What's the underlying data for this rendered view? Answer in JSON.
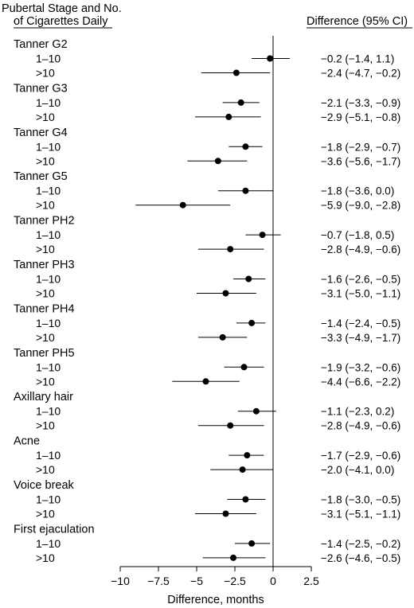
{
  "chart_data": {
    "type": "forest",
    "header_left_line1": "Pubertal Stage and No.",
    "header_left_line2": "of Cigarettes Daily",
    "header_right": "Difference (95% CI)",
    "xlabel": "Difference, months",
    "xlim": [
      -10,
      2.5
    ],
    "xticks": [
      -10,
      -7.5,
      -5,
      -2.5,
      0,
      2.5
    ],
    "xtick_labels": [
      "−10",
      "−7.5",
      "−5",
      "−2.5",
      "0",
      "2.5"
    ],
    "reference_line": 0,
    "groups": [
      {
        "name": "Tanner G2",
        "rows": [
          {
            "label": "1–10",
            "est": -0.2,
            "lo": -1.4,
            "hi": 1.1,
            "text": "−0.2 (−1.4, 1.1)"
          },
          {
            "label": ">10",
            "est": -2.4,
            "lo": -4.7,
            "hi": -0.2,
            "text": "−2.4 (−4.7, −0.2)"
          }
        ]
      },
      {
        "name": "Tanner G3",
        "rows": [
          {
            "label": "1–10",
            "est": -2.1,
            "lo": -3.3,
            "hi": -0.9,
            "text": "−2.1 (−3.3, −0.9)"
          },
          {
            "label": ">10",
            "est": -2.9,
            "lo": -5.1,
            "hi": -0.8,
            "text": "−2.9 (−5.1, −0.8)"
          }
        ]
      },
      {
        "name": "Tanner G4",
        "rows": [
          {
            "label": "1–10",
            "est": -1.8,
            "lo": -2.9,
            "hi": -0.7,
            "text": "−1.8 (−2.9, −0.7)"
          },
          {
            "label": ">10",
            "est": -3.6,
            "lo": -5.6,
            "hi": -1.7,
            "text": "−3.6 (−5.6, −1.7)"
          }
        ]
      },
      {
        "name": "Tanner G5",
        "rows": [
          {
            "label": "1–10",
            "est": -1.8,
            "lo": -3.6,
            "hi": 0.0,
            "text": "−1.8 (−3.6, 0.0)"
          },
          {
            "label": ">10",
            "est": -5.9,
            "lo": -9.0,
            "hi": -2.8,
            "text": "−5.9 (−9.0, −2.8)"
          }
        ]
      },
      {
        "name": "Tanner PH2",
        "rows": [
          {
            "label": "1–10",
            "est": -0.7,
            "lo": -1.8,
            "hi": 0.5,
            "text": "−0.7 (−1.8, 0.5)"
          },
          {
            "label": ">10",
            "est": -2.8,
            "lo": -4.9,
            "hi": -0.6,
            "text": "−2.8 (−4.9, −0.6)"
          }
        ]
      },
      {
        "name": "Tanner PH3",
        "rows": [
          {
            "label": "1–10",
            "est": -1.6,
            "lo": -2.6,
            "hi": -0.5,
            "text": "−1.6 (−2.6, −0.5)"
          },
          {
            "label": ">10",
            "est": -3.1,
            "lo": -5.0,
            "hi": -1.1,
            "text": "−3.1 (−5.0, −1.1)"
          }
        ]
      },
      {
        "name": "Tanner PH4",
        "rows": [
          {
            "label": "1–10",
            "est": -1.4,
            "lo": -2.4,
            "hi": -0.5,
            "text": "−1.4 (−2.4, −0.5)"
          },
          {
            "label": ">10",
            "est": -3.3,
            "lo": -4.9,
            "hi": -1.7,
            "text": "−3.3 (−4.9, −1.7)"
          }
        ]
      },
      {
        "name": "Tanner PH5",
        "rows": [
          {
            "label": "1–10",
            "est": -1.9,
            "lo": -3.2,
            "hi": -0.6,
            "text": "−1.9 (−3.2, −0.6)"
          },
          {
            "label": ">10",
            "est": -4.4,
            "lo": -6.6,
            "hi": -2.2,
            "text": "−4.4 (−6.6, −2.2)"
          }
        ]
      },
      {
        "name": "Axillary hair",
        "rows": [
          {
            "label": "1–10",
            "est": -1.1,
            "lo": -2.3,
            "hi": 0.2,
            "text": "−1.1 (−2.3, 0.2)"
          },
          {
            "label": ">10",
            "est": -2.8,
            "lo": -4.9,
            "hi": -0.6,
            "text": "−2.8 (−4.9, −0.6)"
          }
        ]
      },
      {
        "name": "Acne",
        "rows": [
          {
            "label": "1–10",
            "est": -1.7,
            "lo": -2.9,
            "hi": -0.6,
            "text": "−1.7 (−2.9, −0.6)"
          },
          {
            "label": ">10",
            "est": -2.0,
            "lo": -4.1,
            "hi": 0.0,
            "text": "−2.0 (−4.1, 0.0)"
          }
        ]
      },
      {
        "name": "Voice break",
        "rows": [
          {
            "label": "1–10",
            "est": -1.8,
            "lo": -3.0,
            "hi": -0.5,
            "text": "−1.8 (−3.0, −0.5)"
          },
          {
            "label": ">10",
            "est": -3.1,
            "lo": -5.1,
            "hi": -1.1,
            "text": "−3.1 (−5.1, −1.1)"
          }
        ]
      },
      {
        "name": "First ejaculation",
        "rows": [
          {
            "label": "1–10",
            "est": -1.4,
            "lo": -2.5,
            "hi": -0.2,
            "text": "−1.4 (−2.5, −0.2)"
          },
          {
            "label": ">10",
            "est": -2.6,
            "lo": -4.6,
            "hi": -0.5,
            "text": "−2.6 (−4.6, −0.5)"
          }
        ]
      }
    ]
  }
}
